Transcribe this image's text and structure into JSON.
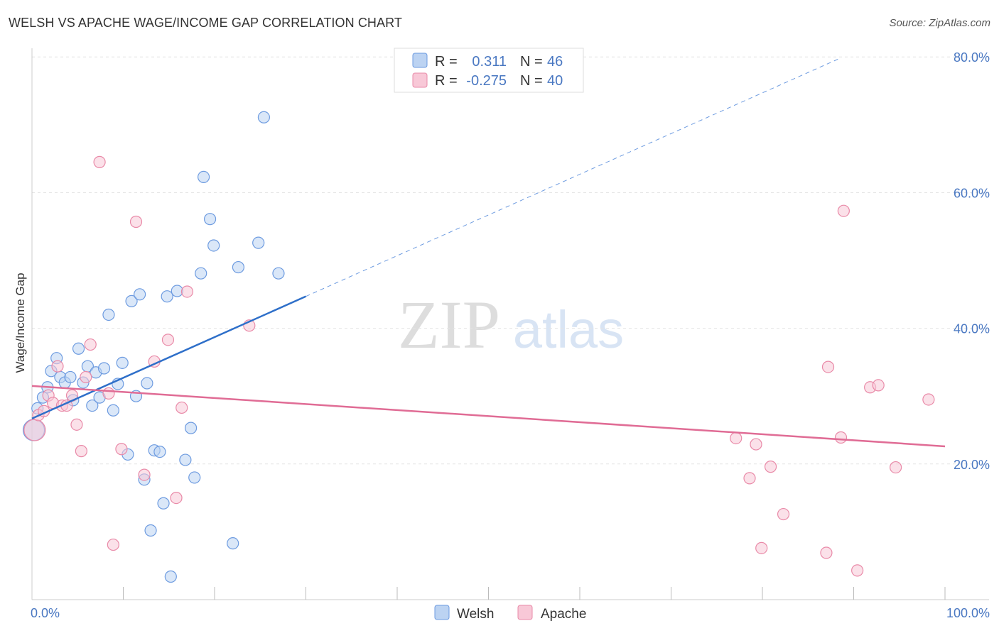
{
  "header": {
    "title": "WELSH VS APACHE WAGE/INCOME GAP CORRELATION CHART",
    "source": "Source: ZipAtlas.com"
  },
  "watermark": {
    "zip": "ZIP",
    "atlas": "atlas"
  },
  "colors": {
    "welsh_fill": "#bcd3f2",
    "welsh_stroke": "#6d9be0",
    "welsh_line": "#2e6fc9",
    "apache_fill": "#f8c8d7",
    "apache_stroke": "#e98aa8",
    "apache_line": "#e06c95",
    "label_blue": "#4a78c2",
    "grid": "#e3e3e3"
  },
  "stats_legend": {
    "rows": [
      {
        "r_label": "R =",
        "r_value": "0.311",
        "n_label": "N =",
        "n_value": "46"
      },
      {
        "r_label": "R =",
        "r_value": "-0.275",
        "n_label": "N =",
        "n_value": "40"
      }
    ]
  },
  "chart_data": {
    "type": "scatter",
    "title": "WELSH VS APACHE WAGE/INCOME GAP CORRELATION CHART",
    "xlabel": "",
    "ylabel": "Wage/Income Gap",
    "xlim": [
      0,
      100
    ],
    "ylim": [
      0,
      80
    ],
    "x_tick_labels": [
      "0.0%",
      "100.0%"
    ],
    "y_ticks": [
      20,
      40,
      60,
      80
    ],
    "y_tick_labels": [
      "20.0%",
      "40.0%",
      "60.0%",
      "80.0%"
    ],
    "grid": true,
    "legend_position": "bottom-center",
    "series": [
      {
        "name": "Welsh",
        "points": [
          [
            0.2,
            25.0
          ],
          [
            0.6,
            28.2
          ],
          [
            1.2,
            29.8
          ],
          [
            1.7,
            31.3
          ],
          [
            2.1,
            33.7
          ],
          [
            2.7,
            35.6
          ],
          [
            3.1,
            32.8
          ],
          [
            3.6,
            32.0
          ],
          [
            4.2,
            32.8
          ],
          [
            4.5,
            29.4
          ],
          [
            5.1,
            37.0
          ],
          [
            5.6,
            32.0
          ],
          [
            6.1,
            34.4
          ],
          [
            6.6,
            28.6
          ],
          [
            7.0,
            33.5
          ],
          [
            7.4,
            29.8
          ],
          [
            7.9,
            34.1
          ],
          [
            8.4,
            42.0
          ],
          [
            8.9,
            27.9
          ],
          [
            9.4,
            31.8
          ],
          [
            9.9,
            34.9
          ],
          [
            10.5,
            21.4
          ],
          [
            10.9,
            44.0
          ],
          [
            11.4,
            30.0
          ],
          [
            11.8,
            45.0
          ],
          [
            12.3,
            17.7
          ],
          [
            12.6,
            31.9
          ],
          [
            13.0,
            10.2
          ],
          [
            13.4,
            22.0
          ],
          [
            14.0,
            21.8
          ],
          [
            14.4,
            14.2
          ],
          [
            14.8,
            44.7
          ],
          [
            15.2,
            3.4
          ],
          [
            15.9,
            45.5
          ],
          [
            16.8,
            20.6
          ],
          [
            17.4,
            25.3
          ],
          [
            17.8,
            18.0
          ],
          [
            18.5,
            48.1
          ],
          [
            18.8,
            62.3
          ],
          [
            19.5,
            56.1
          ],
          [
            19.9,
            52.2
          ],
          [
            22.0,
            8.3
          ],
          [
            22.6,
            49.0
          ],
          [
            24.8,
            52.6
          ],
          [
            25.4,
            71.1
          ],
          [
            27.0,
            48.1
          ]
        ],
        "trend": {
          "x": [
            0,
            30
          ],
          "y": [
            26.7,
            44.7
          ],
          "dashed_extension": {
            "x": [
              30,
              88.5
            ],
            "y": [
              44.7,
              79.8
            ]
          }
        }
      },
      {
        "name": "Apache",
        "points": [
          [
            0.3,
            25.0
          ],
          [
            0.7,
            27.2
          ],
          [
            1.3,
            27.8
          ],
          [
            1.8,
            30.1
          ],
          [
            2.3,
            29.0
          ],
          [
            2.8,
            34.4
          ],
          [
            3.3,
            28.6
          ],
          [
            3.8,
            28.6
          ],
          [
            4.4,
            30.1
          ],
          [
            4.9,
            25.8
          ],
          [
            5.4,
            21.9
          ],
          [
            5.9,
            32.8
          ],
          [
            6.4,
            37.6
          ],
          [
            7.4,
            64.5
          ],
          [
            8.4,
            30.4
          ],
          [
            8.9,
            8.1
          ],
          [
            9.8,
            22.2
          ],
          [
            11.4,
            55.7
          ],
          [
            12.3,
            18.4
          ],
          [
            13.4,
            35.1
          ],
          [
            14.9,
            38.3
          ],
          [
            15.8,
            15.0
          ],
          [
            16.4,
            28.3
          ],
          [
            17.0,
            45.4
          ],
          [
            23.8,
            40.4
          ],
          [
            77.1,
            23.8
          ],
          [
            78.6,
            17.9
          ],
          [
            79.3,
            22.9
          ],
          [
            79.9,
            7.6
          ],
          [
            80.9,
            19.6
          ],
          [
            82.3,
            12.6
          ],
          [
            87.0,
            6.9
          ],
          [
            87.2,
            34.3
          ],
          [
            88.6,
            23.9
          ],
          [
            88.9,
            57.3
          ],
          [
            90.4,
            4.3
          ],
          [
            91.8,
            31.3
          ],
          [
            92.7,
            31.6
          ],
          [
            94.6,
            19.5
          ],
          [
            98.2,
            29.5
          ]
        ],
        "trend": {
          "x": [
            0,
            100
          ],
          "y": [
            31.5,
            22.6
          ]
        }
      }
    ]
  }
}
